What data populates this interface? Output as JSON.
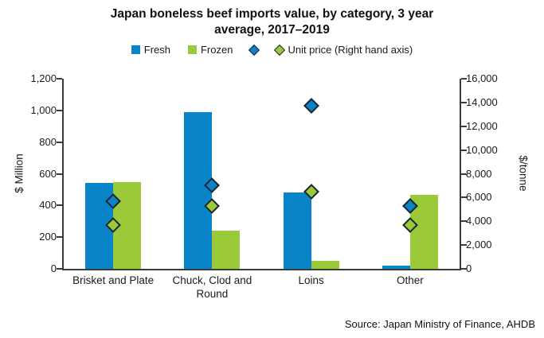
{
  "title": {
    "line1": "Japan boneless beef imports value, by category, 3 year",
    "line2": "average, 2017–2019"
  },
  "legend": {
    "fresh_label": "Fresh",
    "frozen_label": "Frozen",
    "unit_price_label": "Unit price (Right hand axis)"
  },
  "colors": {
    "fresh": "#0a84c8",
    "frozen": "#9aca3a",
    "marker_outline": "#1b2430",
    "axis_line": "#3b3b3b",
    "text": "#1a1a1a"
  },
  "source_note": "Source: Japan Ministry of Finance, AHDB",
  "chart_data": {
    "type": "bar",
    "title": "Japan boneless beef imports value, by category, 3 year average, 2017–2019",
    "categories": [
      "Brisket and Plate",
      "Chuck, Clod and Round",
      "Loins",
      "Other"
    ],
    "series": [
      {
        "name": "Fresh",
        "kind": "bar",
        "axis": "left",
        "color_key": "fresh",
        "values": [
          540,
          990,
          480,
          20
        ]
      },
      {
        "name": "Frozen",
        "kind": "bar",
        "axis": "left",
        "color_key": "frozen",
        "values": [
          545,
          240,
          50,
          465
        ]
      },
      {
        "name": "Unit price Fresh",
        "kind": "diamond",
        "axis": "right",
        "color_key": "fresh",
        "values": [
          5700,
          7000,
          13700,
          5300
        ]
      },
      {
        "name": "Unit price Frozen",
        "kind": "diamond",
        "axis": "right",
        "color_key": "frozen",
        "values": [
          3700,
          5300,
          6500,
          3700
        ]
      }
    ],
    "axis_left": {
      "label": "$ Million",
      "min": 0,
      "max": 1200,
      "step": 200
    },
    "axis_right": {
      "label": "$/tonne",
      "min": 0,
      "max": 16000,
      "step": 2000
    },
    "legend_position": "top",
    "grid": false
  }
}
